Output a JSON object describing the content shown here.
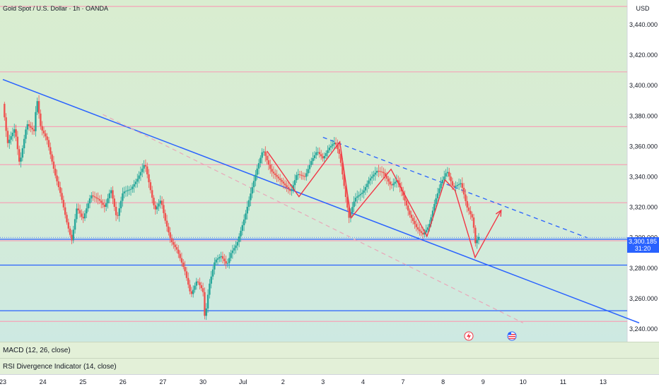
{
  "chart_data": {
    "type": "candlestick",
    "title": "Gold Spot / U.S. Dollar · 1h · OANDA",
    "currency": "USD",
    "price_axis": {
      "ylim": [
        3232,
        3465
      ],
      "ticks": [
        3440,
        3420,
        3400,
        3380,
        3360,
        3340,
        3320,
        3300,
        3280,
        3260,
        3240
      ],
      "tick_labels": [
        "3,440.000",
        "3,420.000",
        "3,400.000",
        "3,380.000",
        "3,360.000",
        "3,340.000",
        "3,320.000",
        "3,300.000",
        "3,280.000",
        "3,260.000",
        "3,240.000"
      ]
    },
    "time_axis": {
      "xlim": [
        0,
        19.6
      ],
      "ticks": [
        {
          "x": 0,
          "label": "23"
        },
        {
          "x": 1,
          "label": "24"
        },
        {
          "x": 2,
          "label": "25"
        },
        {
          "x": 3,
          "label": "26"
        },
        {
          "x": 4,
          "label": "27"
        },
        {
          "x": 5,
          "label": "30"
        },
        {
          "x": 6,
          "label": "Jul"
        },
        {
          "x": 7,
          "label": "2"
        },
        {
          "x": 8,
          "label": "3"
        },
        {
          "x": 9,
          "label": "4"
        },
        {
          "x": 10,
          "label": "7"
        },
        {
          "x": 11,
          "label": "8"
        },
        {
          "x": 12,
          "label": "9"
        },
        {
          "x": 13,
          "label": "10"
        },
        {
          "x": 14,
          "label": "11"
        },
        {
          "x": 15,
          "label": "13"
        }
      ]
    },
    "last_price": {
      "label": "3,300.185",
      "countdown": "31:20",
      "value": 3300.2
    },
    "price_path": [
      [
        0,
        3388
      ],
      [
        0.12,
        3362
      ],
      [
        0.3,
        3372
      ],
      [
        0.42,
        3348
      ],
      [
        0.6,
        3375
      ],
      [
        0.78,
        3370
      ],
      [
        0.85,
        3392
      ],
      [
        0.95,
        3372
      ],
      [
        1.1,
        3365
      ],
      [
        1.3,
        3342
      ],
      [
        1.45,
        3328
      ],
      [
        1.6,
        3310
      ],
      [
        1.72,
        3298
      ],
      [
        1.85,
        3320
      ],
      [
        2.0,
        3312
      ],
      [
        2.2,
        3328
      ],
      [
        2.4,
        3325
      ],
      [
        2.55,
        3320
      ],
      [
        2.7,
        3332
      ],
      [
        2.85,
        3312
      ],
      [
        3.0,
        3330
      ],
      [
        3.2,
        3332
      ],
      [
        3.35,
        3338
      ],
      [
        3.55,
        3349
      ],
      [
        3.7,
        3330
      ],
      [
        3.8,
        3318
      ],
      [
        3.95,
        3325
      ],
      [
        4.05,
        3312
      ],
      [
        4.2,
        3298
      ],
      [
        4.35,
        3292
      ],
      [
        4.55,
        3278
      ],
      [
        4.7,
        3262
      ],
      [
        4.85,
        3272
      ],
      [
        5.0,
        3265
      ],
      [
        5.05,
        3246
      ],
      [
        5.15,
        3268
      ],
      [
        5.3,
        3285
      ],
      [
        5.45,
        3288
      ],
      [
        5.6,
        3282
      ],
      [
        5.7,
        3290
      ],
      [
        5.85,
        3296
      ],
      [
        6.05,
        3314
      ],
      [
        6.2,
        3330
      ],
      [
        6.35,
        3345
      ],
      [
        6.5,
        3358
      ],
      [
        6.7,
        3344
      ],
      [
        6.85,
        3340
      ],
      [
        7.0,
        3336
      ],
      [
        7.2,
        3330
      ],
      [
        7.35,
        3342
      ],
      [
        7.55,
        3340
      ],
      [
        7.7,
        3350
      ],
      [
        7.85,
        3357
      ],
      [
        8.0,
        3352
      ],
      [
        8.15,
        3359
      ],
      [
        8.3,
        3363
      ],
      [
        8.42,
        3354
      ],
      [
        8.55,
        3330
      ],
      [
        8.65,
        3313
      ],
      [
        8.8,
        3326
      ],
      [
        9.0,
        3330
      ],
      [
        9.15,
        3338
      ],
      [
        9.35,
        3344
      ],
      [
        9.5,
        3343
      ],
      [
        9.7,
        3334
      ],
      [
        9.85,
        3338
      ],
      [
        10.0,
        3328
      ],
      [
        10.15,
        3316
      ],
      [
        10.35,
        3306
      ],
      [
        10.5,
        3302
      ],
      [
        10.65,
        3308
      ],
      [
        10.8,
        3324
      ],
      [
        10.95,
        3336
      ],
      [
        11.1,
        3344
      ],
      [
        11.25,
        3333
      ],
      [
        11.45,
        3336
      ],
      [
        11.6,
        3320
      ],
      [
        11.75,
        3312
      ],
      [
        11.8,
        3296
      ],
      [
        11.92,
        3302
      ]
    ],
    "horizontal_lines": {
      "blue": [
        3457,
        3299,
        3282,
        3252
      ],
      "pink": [
        3452,
        3409,
        3373,
        3348,
        3323,
        3298,
        3245
      ]
    },
    "trendlines": {
      "main_support": [
        [
          0,
          3404
        ],
        [
          15.9,
          3244
        ]
      ],
      "upper_dashed_resistance": [
        [
          8.0,
          3366
        ],
        [
          14.6,
          3300
        ]
      ],
      "lower_dashed": [
        [
          2.5,
          3381
        ],
        [
          13.0,
          3244
        ]
      ]
    },
    "zigzag": [
      [
        6.6,
        3357
      ],
      [
        7.4,
        3327
      ],
      [
        8.42,
        3363
      ],
      [
        8.7,
        3313
      ],
      [
        9.7,
        3345
      ],
      [
        10.6,
        3301
      ],
      [
        11.05,
        3338
      ],
      [
        11.3,
        3331
      ],
      [
        11.8,
        3287
      ],
      [
        12.45,
        3318
      ]
    ],
    "indicators": [
      {
        "name": "MACD (12, 26, close)"
      },
      {
        "name": "RSI Divergence Indicator (14, close)"
      }
    ],
    "event_markers": [
      "lightning-event-icon",
      "us-flag-event-icon"
    ],
    "colors": {
      "up": "#26a69a",
      "down": "#ef5350",
      "trendline": "#2962ff",
      "pattern": "#f23645",
      "pink_level": "#f5a3b7",
      "last_price": "#2962ff"
    }
  }
}
